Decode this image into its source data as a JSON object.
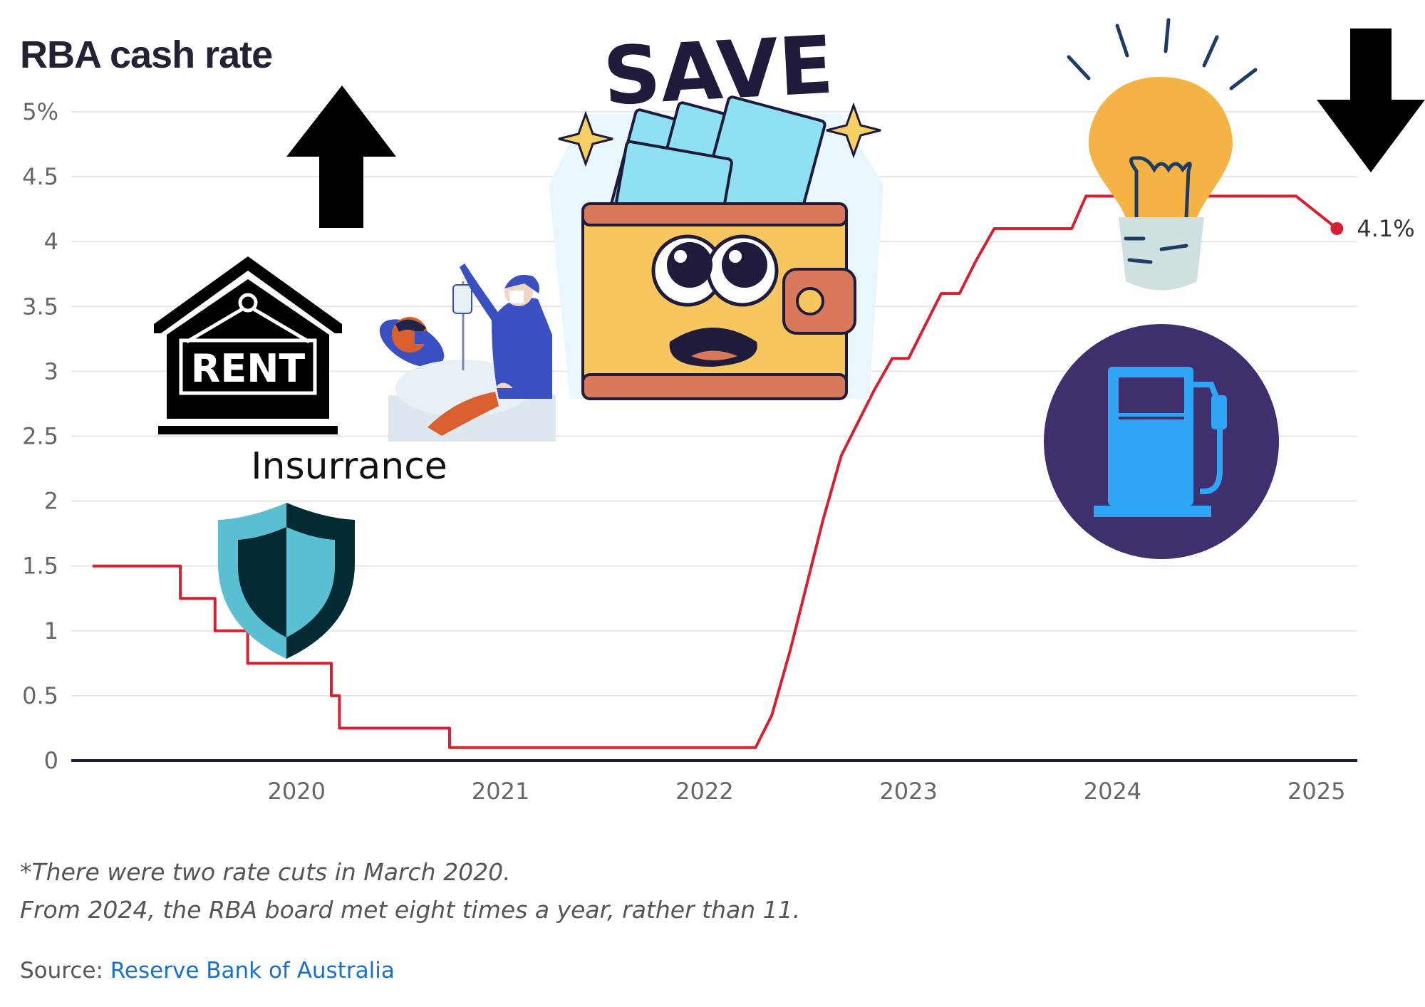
{
  "chart_data": {
    "type": "line",
    "title": "RBA cash rate",
    "xlabel": "",
    "ylabel": "",
    "y_ticks": [
      "0",
      "0.5",
      "1",
      "1.5",
      "2",
      "2.5",
      "3",
      "3.5",
      "4",
      "4.5",
      "5%"
    ],
    "y_tick_values": [
      0,
      0.5,
      1,
      1.5,
      2,
      2.5,
      3,
      3.5,
      4,
      4.5,
      5
    ],
    "x_ticks": [
      "2020",
      "2021",
      "2022",
      "2023",
      "2024",
      "2025"
    ],
    "x_tick_values": [
      2020,
      2021,
      2022,
      2023,
      2024,
      2025
    ],
    "xlim": [
      2019.0,
      2025.2
    ],
    "ylim": [
      0,
      5
    ],
    "grid": true,
    "series": [
      {
        "color": "#d62031",
        "x": [
          2019.0,
          2019.43,
          2019.43,
          2019.6,
          2019.6,
          2019.76,
          2019.76,
          2020.17,
          2020.17,
          2020.21,
          2020.21,
          2020.75,
          2020.75,
          2020.83,
          2020.83,
          2022.25,
          2022.33,
          2022.42,
          2022.5,
          2022.58,
          2022.67,
          2022.75,
          2022.83,
          2022.92,
          2023.0,
          2023.08,
          2023.16,
          2023.25,
          2023.33,
          2023.42,
          2023.5,
          2023.8,
          2023.87,
          2024.9,
          2025.1
        ],
        "y": [
          1.5,
          1.5,
          1.25,
          1.25,
          1.0,
          1.0,
          0.75,
          0.75,
          0.5,
          0.5,
          0.25,
          0.25,
          0.1,
          0.1,
          0.1,
          0.1,
          0.35,
          0.85,
          1.35,
          1.85,
          2.35,
          2.6,
          2.85,
          3.1,
          3.1,
          3.35,
          3.6,
          3.6,
          3.85,
          4.1,
          4.1,
          4.1,
          4.35,
          4.35,
          4.1
        ]
      }
    ],
    "end_label": "4.1%"
  },
  "annotations": {
    "insurance_label": "Insurrance",
    "rent_sign": "RENT",
    "save_sticker": "SAVE"
  },
  "notes": {
    "line1": "*There were two rate cuts in March 2020.",
    "line2": "From 2024, the RBA board met eight times a year, rather than 11."
  },
  "source": {
    "prefix": "Source: ",
    "link_text": "Reserve Bank of Australia"
  },
  "colors": {
    "line": "#d62031",
    "grid": "#e6e6e6",
    "axis": "#1d1d3a",
    "tick_text": "#666666",
    "wallet_body": "#f7c65f",
    "wallet_trim": "#d9785a",
    "cash": "#8fe0f3",
    "bulb": "#f5b345",
    "pump_bg": "#3f2f6d",
    "pump": "#2fa6f5",
    "shield_light": "#5bbfd2",
    "shield_dark": "#042a33"
  },
  "icons": [
    "arrow-up-icon",
    "rent-house-icon",
    "patient-nurse-icon",
    "insurance-shield-icon",
    "save-wallet-icon",
    "lightbulb-icon",
    "fuel-pump-icon",
    "arrow-down-icon"
  ]
}
